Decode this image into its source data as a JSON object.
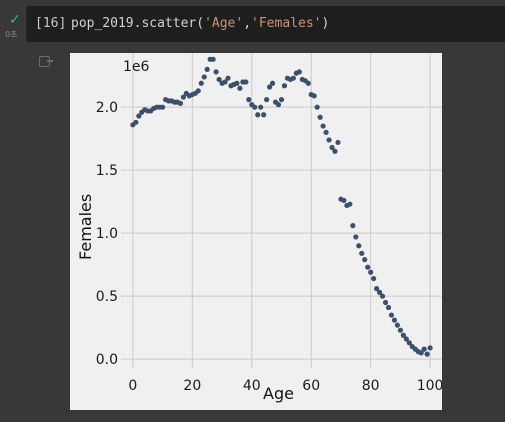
{
  "cell": {
    "status_icon": "checkmark-icon",
    "status_color": "#3fbf4f",
    "exec_time": "0초",
    "exec_count": "[16]",
    "code": {
      "prefix": "pop_2019.scatter(",
      "arg1": "'Age'",
      "sep": ",",
      "arg2": "'Females'",
      "suffix": ")"
    },
    "output_icon": "output-toggle-icon"
  },
  "chart_data": {
    "type": "scatter",
    "xlabel": "Age",
    "ylabel": "Females",
    "y_offset_label": "1e6",
    "xlim": [
      -4,
      104
    ],
    "ylim": [
      -0.07,
      2.43
    ],
    "xticks": [
      0,
      20,
      40,
      60,
      80,
      100
    ],
    "xtick_labels": [
      "0",
      "20",
      "40",
      "60",
      "80",
      "100"
    ],
    "yticks": [
      0.0,
      0.5,
      1.0,
      1.5,
      2.0
    ],
    "ytick_labels": [
      "0.0",
      "0.5",
      "1.0",
      "1.5",
      "2.0"
    ],
    "grid": true,
    "point_color": "#3d4f6b",
    "x": [
      0,
      1,
      2,
      3,
      4,
      5,
      6,
      7,
      8,
      9,
      10,
      11,
      12,
      13,
      14,
      15,
      16,
      17,
      18,
      19,
      20,
      21,
      22,
      23,
      24,
      25,
      26,
      27,
      28,
      29,
      30,
      31,
      32,
      33,
      34,
      35,
      36,
      37,
      38,
      39,
      40,
      41,
      42,
      43,
      44,
      45,
      46,
      47,
      48,
      49,
      50,
      51,
      52,
      53,
      54,
      55,
      56,
      57,
      58,
      59,
      60,
      61,
      62,
      63,
      64,
      65,
      66,
      67,
      68,
      69,
      70,
      71,
      72,
      73,
      74,
      75,
      76,
      77,
      78,
      79,
      80,
      81,
      82,
      83,
      84,
      85,
      86,
      87,
      88,
      89,
      90,
      91,
      92,
      93,
      94,
      95,
      96,
      97,
      98,
      99,
      100
    ],
    "y": [
      1.86,
      1.88,
      1.93,
      1.96,
      1.98,
      1.97,
      1.97,
      1.99,
      2.0,
      2.0,
      2.0,
      2.06,
      2.05,
      2.05,
      2.04,
      2.04,
      2.03,
      2.08,
      2.11,
      2.09,
      2.1,
      2.11,
      2.13,
      2.19,
      2.24,
      2.3,
      2.38,
      2.38,
      2.28,
      2.22,
      2.19,
      2.2,
      2.23,
      2.17,
      2.18,
      2.19,
      2.15,
      2.2,
      2.2,
      2.06,
      2.02,
      2.0,
      1.94,
      2.0,
      1.94,
      2.06,
      2.16,
      2.19,
      2.04,
      2.02,
      2.06,
      2.17,
      2.23,
      2.22,
      2.23,
      2.27,
      2.28,
      2.22,
      2.21,
      2.19,
      2.1,
      2.09,
      2.0,
      1.92,
      1.85,
      1.8,
      1.74,
      1.68,
      1.65,
      1.72,
      1.27,
      1.26,
      1.22,
      1.23,
      1.06,
      0.97,
      0.9,
      0.84,
      0.79,
      0.73,
      0.69,
      0.64,
      0.56,
      0.53,
      0.5,
      0.45,
      0.41,
      0.35,
      0.31,
      0.27,
      0.23,
      0.19,
      0.16,
      0.13,
      0.1,
      0.08,
      0.06,
      0.05,
      0.08,
      0.04,
      0.09
    ]
  }
}
